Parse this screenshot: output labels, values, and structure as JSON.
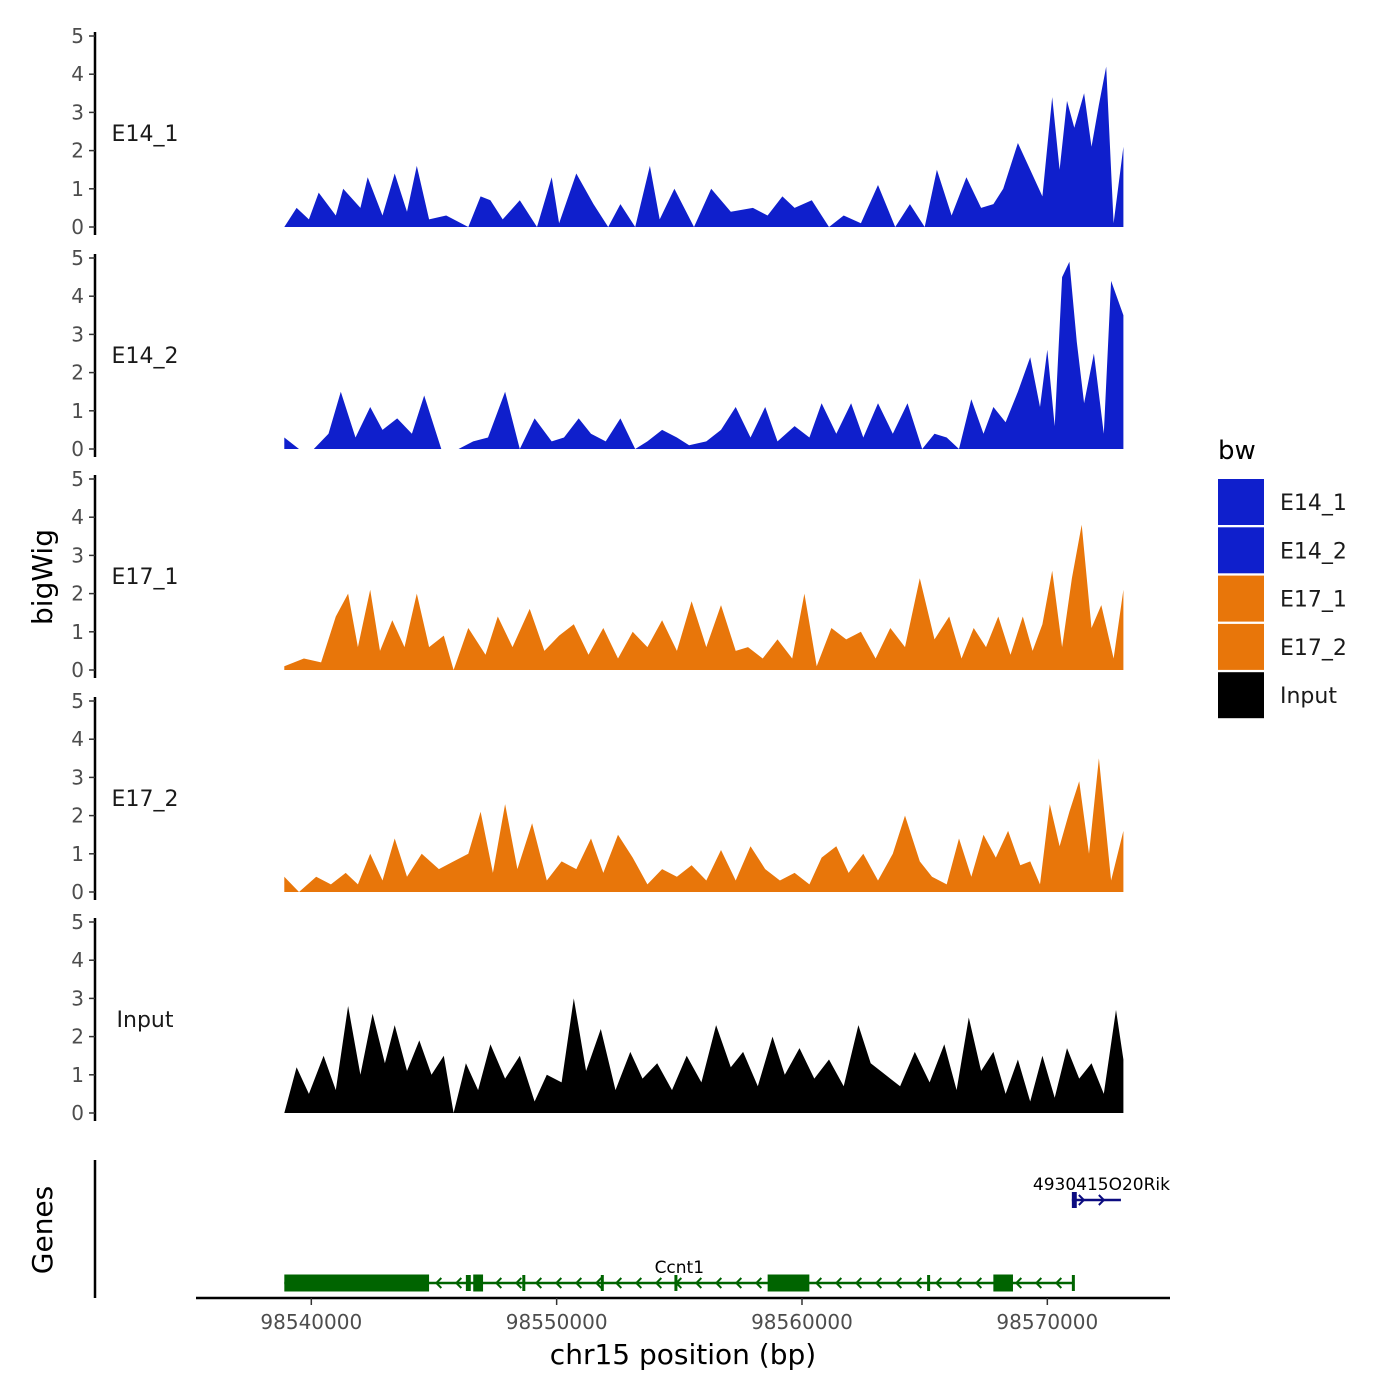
{
  "chart_data": {
    "type": "area",
    "title": "",
    "xlabel": "chr15 position (bp)",
    "ylabel": "bigWig",
    "genes_label": "Genes",
    "xlim": [
      98535300,
      98575000
    ],
    "data_range": [
      98538900,
      98573100
    ],
    "ylim": [
      0,
      5
    ],
    "x_ticks": [
      98540000,
      98550000,
      98560000,
      98570000
    ],
    "x_tick_labels": [
      "98540000",
      "98550000",
      "98560000",
      "98570000"
    ],
    "y_ticks": [
      0,
      1,
      2,
      3,
      4,
      5
    ],
    "y_tick_labels": [
      "0",
      "1",
      "2",
      "3",
      "4",
      "5"
    ],
    "legend": {
      "title": "bw",
      "entries": [
        {
          "name": "E14_1",
          "color": "#0f1fcc"
        },
        {
          "name": "E14_2",
          "color": "#0f1fcc"
        },
        {
          "name": "E17_1",
          "color": "#e8760a"
        },
        {
          "name": "E17_2",
          "color": "#e8760a"
        },
        {
          "name": "Input",
          "color": "#000000"
        }
      ]
    },
    "series": [
      {
        "name": "E14_1",
        "color": "#0f1fcc",
        "x": [
          98538900,
          98539400,
          98539900,
          98540300,
          98541000,
          98541300,
          98542000,
          98542300,
          98542900,
          98543400,
          98543900,
          98544300,
          98544800,
          98545500,
          98546400,
          98546900,
          98547300,
          98547800,
          98548500,
          98549200,
          98549800,
          98550100,
          98550800,
          98551500,
          98552100,
          98552600,
          98553200,
          98553800,
          98554200,
          98554800,
          98555600,
          98556300,
          98557100,
          98558000,
          98558600,
          98559200,
          98559700,
          98560400,
          98561100,
          98561700,
          98562400,
          98563100,
          98563800,
          98564400,
          98565000,
          98565500,
          98566100,
          98566700,
          98567300,
          98567800,
          98568200,
          98568800,
          98569300,
          98569800,
          98570200,
          98570500,
          98570800,
          98571100,
          98571500,
          98571800,
          98572100,
          98572400,
          98572700,
          98573100
        ],
        "values": [
          0,
          0.5,
          0.2,
          0.9,
          0.3,
          1.0,
          0.5,
          1.3,
          0.3,
          1.4,
          0.4,
          1.6,
          0.2,
          0.3,
          0,
          0.8,
          0.7,
          0.2,
          0.7,
          0,
          1.3,
          0.1,
          1.4,
          0.6,
          0,
          0.6,
          0,
          1.6,
          0.2,
          1.0,
          0,
          1.0,
          0.4,
          0.5,
          0.3,
          0.8,
          0.5,
          0.7,
          0,
          0.3,
          0.1,
          1.1,
          0,
          0.6,
          0,
          1.5,
          0.3,
          1.3,
          0.5,
          0.6,
          1.0,
          2.2,
          1.5,
          0.8,
          3.4,
          1.5,
          3.3,
          2.6,
          3.5,
          2.1,
          3.2,
          4.2,
          0.1,
          2.1
        ]
      },
      {
        "name": "E14_2",
        "color": "#0f1fcc",
        "x": [
          98538900,
          98539500,
          98540100,
          98540700,
          98541200,
          98541800,
          98542400,
          98542900,
          98543500,
          98544100,
          98544600,
          98545300,
          98546000,
          98546600,
          98547200,
          98547900,
          98548500,
          98549100,
          98549800,
          98550300,
          98550900,
          98551400,
          98552000,
          98552600,
          98553200,
          98553700,
          98554300,
          98554900,
          98555400,
          98556100,
          98556700,
          98557300,
          98557900,
          98558500,
          98559000,
          98559700,
          98560300,
          98560800,
          98561400,
          98562000,
          98562500,
          98563100,
          98563700,
          98564300,
          98564900,
          98565400,
          98565900,
          98566400,
          98566900,
          98567400,
          98567800,
          98568300,
          98568800,
          98569300,
          98569700,
          98570000,
          98570300,
          98570600,
          98570900,
          98571200,
          98571500,
          98571900,
          98572300,
          98572600,
          98573100
        ],
        "values": [
          0.3,
          0,
          0,
          0.4,
          1.5,
          0.3,
          1.1,
          0.5,
          0.8,
          0.4,
          1.4,
          0,
          0,
          0.2,
          0.3,
          1.5,
          0,
          0.8,
          0.2,
          0.3,
          0.8,
          0.4,
          0.2,
          0.8,
          0,
          0.2,
          0.5,
          0.3,
          0.1,
          0.2,
          0.5,
          1.1,
          0.3,
          1.1,
          0.2,
          0.6,
          0.3,
          1.2,
          0.4,
          1.2,
          0.3,
          1.2,
          0.4,
          1.2,
          0,
          0.4,
          0.3,
          0,
          1.3,
          0.4,
          1.1,
          0.7,
          1.5,
          2.4,
          1.1,
          2.6,
          0.6,
          4.5,
          4.9,
          2.8,
          1.2,
          2.5,
          0.4,
          4.4,
          3.5
        ]
      },
      {
        "name": "E17_1",
        "color": "#e8760a",
        "x": [
          98538900,
          98539700,
          98540400,
          98541000,
          98541500,
          98541900,
          98542400,
          98542800,
          98543300,
          98543800,
          98544300,
          98544800,
          98545400,
          98545800,
          98546400,
          98547100,
          98547600,
          98548200,
          98548900,
          98549500,
          98550100,
          98550700,
          98551300,
          98551900,
          98552500,
          98553100,
          98553700,
          98554300,
          98554900,
          98555500,
          98556100,
          98556700,
          98557300,
          98557800,
          98558400,
          98559000,
          98559600,
          98560100,
          98560600,
          98561200,
          98561800,
          98562400,
          98563000,
          98563600,
          98564200,
          98564800,
          98565400,
          98566000,
          98566500,
          98567000,
          98567500,
          98568000,
          98568500,
          98569000,
          98569400,
          98569800,
          98570200,
          98570600,
          98571000,
          98571400,
          98571800,
          98572200,
          98572700,
          98573100
        ],
        "values": [
          0.1,
          0.3,
          0.2,
          1.4,
          2.0,
          0.6,
          2.1,
          0.5,
          1.3,
          0.6,
          2.0,
          0.6,
          0.9,
          0,
          1.1,
          0.4,
          1.4,
          0.6,
          1.6,
          0.5,
          0.9,
          1.2,
          0.4,
          1.1,
          0.3,
          1.0,
          0.6,
          1.3,
          0.5,
          1.8,
          0.6,
          1.7,
          0.5,
          0.6,
          0.3,
          0.8,
          0.3,
          2.0,
          0.1,
          1.1,
          0.8,
          1.0,
          0.3,
          1.1,
          0.6,
          2.4,
          0.8,
          1.4,
          0.3,
          1.1,
          0.6,
          1.4,
          0.4,
          1.4,
          0.5,
          1.2,
          2.6,
          0.6,
          2.4,
          3.8,
          1.1,
          1.7,
          0.3,
          2.1
        ]
      },
      {
        "name": "E17_2",
        "color": "#e8760a",
        "x": [
          98538900,
          98539500,
          98540200,
          98540800,
          98541400,
          98541900,
          98542400,
          98542900,
          98543400,
          98543900,
          98544500,
          98545200,
          98545800,
          98546400,
          98546900,
          98547400,
          98547900,
          98548400,
          98549000,
          98549600,
          98550200,
          98550800,
          98551400,
          98551900,
          98552500,
          98553100,
          98553700,
          98554300,
          98554900,
          98555500,
          98556100,
          98556700,
          98557300,
          98557900,
          98558500,
          98559100,
          98559700,
          98560300,
          98560800,
          98561400,
          98561900,
          98562500,
          98563100,
          98563700,
          98564200,
          98564800,
          98565300,
          98565900,
          98566400,
          98566900,
          98567400,
          98567900,
          98568400,
          98568900,
          98569300,
          98569700,
          98570100,
          98570500,
          98570900,
          98571300,
          98571700,
          98572100,
          98572600,
          98573100
        ],
        "values": [
          0.4,
          0,
          0.4,
          0.2,
          0.5,
          0.2,
          1.0,
          0.3,
          1.4,
          0.4,
          1.0,
          0.6,
          0.8,
          1.0,
          2.1,
          0.5,
          2.3,
          0.6,
          1.8,
          0.3,
          0.8,
          0.6,
          1.4,
          0.5,
          1.5,
          0.9,
          0.2,
          0.6,
          0.4,
          0.7,
          0.3,
          1.1,
          0.3,
          1.2,
          0.6,
          0.3,
          0.5,
          0.2,
          0.9,
          1.2,
          0.5,
          1.0,
          0.3,
          1.0,
          2.0,
          0.8,
          0.4,
          0.2,
          1.4,
          0.4,
          1.5,
          0.9,
          1.6,
          0.7,
          0.8,
          0.2,
          2.3,
          1.2,
          2.1,
          2.9,
          1.0,
          3.5,
          0.3,
          1.6
        ]
      },
      {
        "name": "Input",
        "color": "#000000",
        "x": [
          98538900,
          98539400,
          98539900,
          98540500,
          98541000,
          98541500,
          98542000,
          98542500,
          98543000,
          98543400,
          98543900,
          98544400,
          98544900,
          98545400,
          98545800,
          98546300,
          98546800,
          98547300,
          98547900,
          98548500,
          98549100,
          98549600,
          98550200,
          98550700,
          98551200,
          98551800,
          98552400,
          98553000,
          98553500,
          98554100,
          98554700,
          98555300,
          98555900,
          98556500,
          98557100,
          98557600,
          98558200,
          98558800,
          98559300,
          98559900,
          98560500,
          98561100,
          98561700,
          98562300,
          98562800,
          98563400,
          98564000,
          98564600,
          98565200,
          98565800,
          98566300,
          98566800,
          98567300,
          98567800,
          98568300,
          98568800,
          98569300,
          98569800,
          98570300,
          98570800,
          98571300,
          98571800,
          98572300,
          98572800,
          98573100
        ],
        "values": [
          0,
          1.2,
          0.5,
          1.5,
          0.6,
          2.8,
          1.0,
          2.6,
          1.3,
          2.3,
          1.1,
          1.9,
          1.0,
          1.5,
          0,
          1.3,
          0.6,
          1.8,
          0.9,
          1.5,
          0.3,
          1.0,
          0.8,
          3.0,
          1.1,
          2.2,
          0.6,
          1.6,
          0.9,
          1.3,
          0.6,
          1.5,
          0.8,
          2.3,
          1.2,
          1.6,
          0.7,
          2.0,
          1.0,
          1.7,
          0.9,
          1.4,
          0.7,
          2.3,
          1.3,
          1.0,
          0.7,
          1.6,
          0.8,
          1.8,
          0.6,
          2.5,
          1.1,
          1.6,
          0.5,
          1.4,
          0.3,
          1.5,
          0.4,
          1.7,
          0.9,
          1.3,
          0.5,
          2.7,
          1.4
        ]
      }
    ],
    "genes": [
      {
        "name": "Ccnt1",
        "strand": "-",
        "color": "#006400",
        "start": 98538900,
        "end": 98571100,
        "exons": [
          [
            98538900,
            98544800
          ],
          [
            98546300,
            98546500
          ],
          [
            98546600,
            98547000
          ],
          [
            98548600,
            98548700
          ],
          [
            98551800,
            98551900
          ],
          [
            98554800,
            98554900
          ],
          [
            98558600,
            98560300
          ],
          [
            98565100,
            98565200
          ],
          [
            98567800,
            98568600
          ],
          [
            98571000,
            98571100
          ]
        ]
      },
      {
        "name": "4930415O20Rik",
        "strand": "+",
        "color": "#0b0b80",
        "start": 98571000,
        "end": 98573000,
        "exons": [
          [
            98571000,
            98571200
          ]
        ]
      }
    ]
  }
}
